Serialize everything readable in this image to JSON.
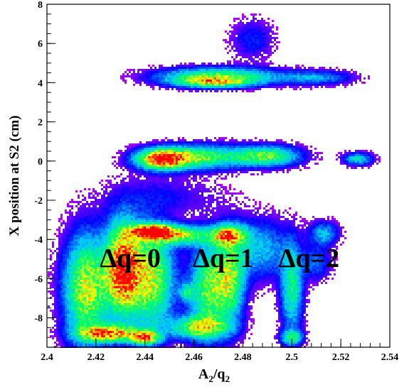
{
  "chart_data": {
    "type": "heatmap",
    "title": "",
    "xlabel": {
      "base": "A",
      "base_sub": "2",
      "sep": "/q",
      "sep_sub": "2"
    },
    "ylabel": "X position at S2 (cm)",
    "xlim": [
      2.4,
      2.54
    ],
    "ylim": [
      -9.5,
      8
    ],
    "x_ticks": [
      "2.4",
      "2.42",
      "2.44",
      "2.46",
      "2.48",
      "2.5",
      "2.52",
      "2.54"
    ],
    "y_ticks": [
      "-8",
      "-6",
      "-4",
      "-2",
      "0",
      "2",
      "4",
      "6",
      "8"
    ],
    "x_tick_values": [
      2.4,
      2.42,
      2.44,
      2.46,
      2.48,
      2.5,
      2.52,
      2.54
    ],
    "y_tick_values": [
      -8,
      -6,
      -4,
      -2,
      0,
      2,
      4,
      6,
      8
    ],
    "grid": false,
    "colormap": [
      "#ff00ff",
      "#0000ff",
      "#00c8ff",
      "#00ff66",
      "#ffff00",
      "#ff0000"
    ],
    "annotations": [
      {
        "text": "Δq=0",
        "x": 2.434,
        "y": -5.4
      },
      {
        "text": "Δq=1",
        "x": 2.472,
        "y": -5.4
      },
      {
        "text": "Δq=2",
        "x": 2.507,
        "y": -5.4
      }
    ],
    "clusters": [
      {
        "x": 2.47,
        "y": 4.3,
        "sx": 0.016,
        "sy": 0.3,
        "w": 0.6
      },
      {
        "x": 2.468,
        "y": 4.0,
        "sx": 0.01,
        "sy": 0.18,
        "w": 0.45
      },
      {
        "x": 2.51,
        "y": 4.25,
        "sx": 0.01,
        "sy": 0.25,
        "w": 0.25
      },
      {
        "x": 2.484,
        "y": 6.2,
        "sx": 0.006,
        "sy": 0.7,
        "w": 0.14
      },
      {
        "x": 2.447,
        "y": 0.1,
        "sx": 0.007,
        "sy": 0.35,
        "w": 0.95
      },
      {
        "x": 2.463,
        "y": 0.2,
        "sx": 0.012,
        "sy": 0.4,
        "w": 0.55
      },
      {
        "x": 2.49,
        "y": 0.25,
        "sx": 0.009,
        "sy": 0.35,
        "w": 0.55
      },
      {
        "x": 2.527,
        "y": 0.1,
        "sx": 0.004,
        "sy": 0.22,
        "w": 0.35
      },
      {
        "x": 2.448,
        "y": -1.8,
        "sx": 0.016,
        "sy": 0.7,
        "w": 0.1
      },
      {
        "x": 2.431,
        "y": -5.5,
        "sx": 0.005,
        "sy": 1.6,
        "w": 1.0
      },
      {
        "x": 2.443,
        "y": -3.6,
        "sx": 0.006,
        "sy": 0.25,
        "w": 1.0
      },
      {
        "x": 2.416,
        "y": -6.5,
        "sx": 0.006,
        "sy": 1.8,
        "w": 0.7
      },
      {
        "x": 2.425,
        "y": -8.8,
        "sx": 0.008,
        "sy": 0.3,
        "w": 0.8
      },
      {
        "x": 2.443,
        "y": -6.0,
        "sx": 0.006,
        "sy": 1.7,
        "w": 0.65
      },
      {
        "x": 2.455,
        "y": -3.8,
        "sx": 0.008,
        "sy": 0.35,
        "w": 0.55
      },
      {
        "x": 2.462,
        "y": -8.5,
        "sx": 0.008,
        "sy": 0.4,
        "w": 0.6
      },
      {
        "x": 2.466,
        "y": -6.5,
        "sx": 0.005,
        "sy": 1.5,
        "w": 0.6
      },
      {
        "x": 2.475,
        "y": -6.0,
        "sx": 0.004,
        "sy": 1.5,
        "w": 0.55
      },
      {
        "x": 2.474,
        "y": -3.8,
        "sx": 0.005,
        "sy": 0.35,
        "w": 0.7
      },
      {
        "x": 2.487,
        "y": -4.5,
        "sx": 0.008,
        "sy": 1.0,
        "w": 0.3
      },
      {
        "x": 2.5,
        "y": -6.5,
        "sx": 0.003,
        "sy": 1.5,
        "w": 0.45
      },
      {
        "x": 2.5,
        "y": -9.0,
        "sx": 0.003,
        "sy": 0.25,
        "w": 0.45
      },
      {
        "x": 2.513,
        "y": -3.7,
        "sx": 0.004,
        "sy": 0.4,
        "w": 0.3
      },
      {
        "x": 2.51,
        "y": -5.2,
        "sx": 0.004,
        "sy": 0.6,
        "w": 0.2
      },
      {
        "x": 2.457,
        "y": -6.7,
        "sx": 0.002,
        "sy": 0.3,
        "w": 0.35
      },
      {
        "x": 2.44,
        "y": -9.0,
        "sx": 0.004,
        "sy": 0.25,
        "w": 0.75
      }
    ]
  }
}
